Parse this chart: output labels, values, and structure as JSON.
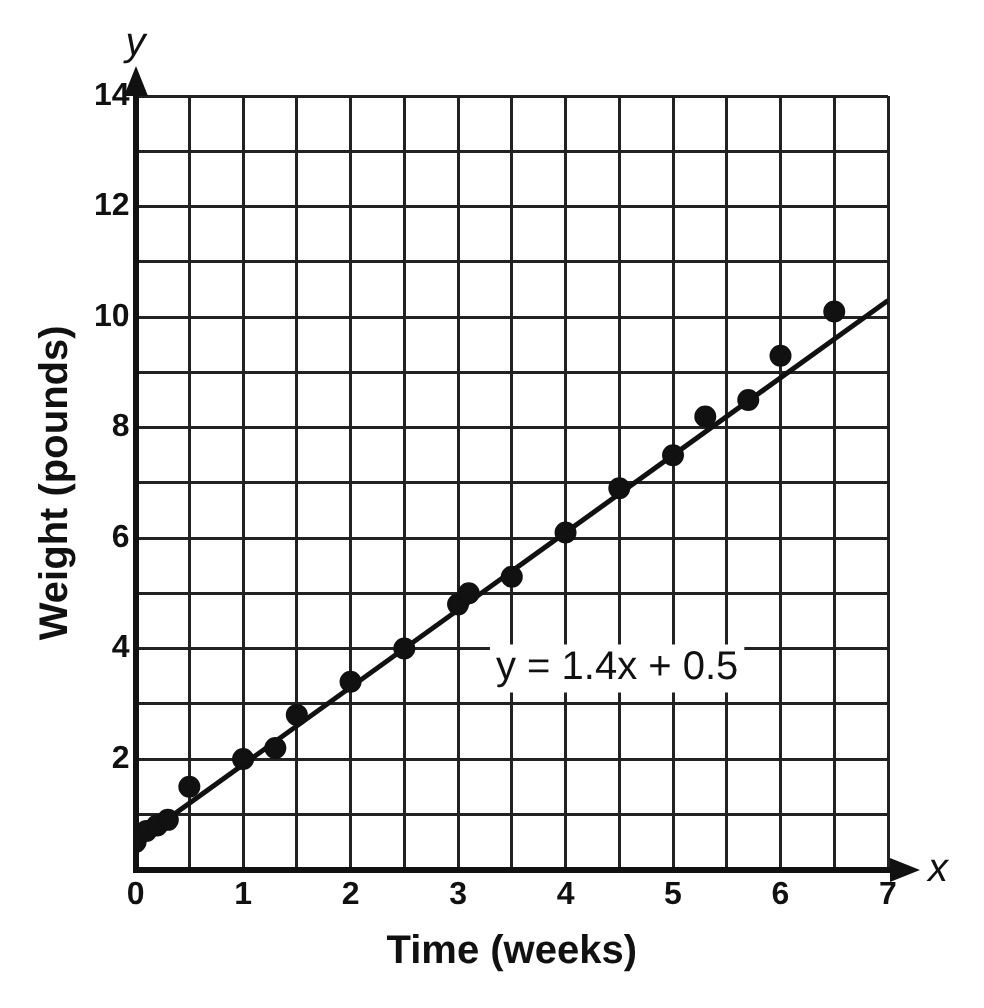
{
  "chart_data": {
    "type": "scatter",
    "xlabel": "Time (weeks)",
    "ylabel": "Weight (pounds)",
    "xlim": [
      0,
      7
    ],
    "ylim": [
      0,
      14
    ],
    "xticks": [
      0,
      {
        "value": 0.5,
        "label": null
      },
      1,
      {
        "value": 1.5,
        "label": null
      },
      2,
      {
        "value": 2.5,
        "label": null
      },
      3,
      {
        "value": 3.5,
        "label": null
      },
      4,
      {
        "value": 4.5,
        "label": null
      },
      5,
      {
        "value": 5.5,
        "label": null
      },
      6,
      {
        "value": 6.5,
        "label": null
      },
      7
    ],
    "yticks": [
      {
        "value": 0,
        "label": null
      },
      {
        "value": 1,
        "label": null
      },
      2,
      {
        "value": 3,
        "label": null
      },
      4,
      {
        "value": 5,
        "label": null
      },
      6,
      {
        "value": 7,
        "label": null
      },
      8,
      {
        "value": 9,
        "label": null
      },
      10,
      {
        "value": 11,
        "label": null
      },
      12,
      {
        "value": 13,
        "label": null
      },
      14
    ],
    "grid": true,
    "marker": "circle",
    "series": [
      {
        "type": "scatter",
        "color": "#111111",
        "x": [
          0,
          0.1,
          0.2,
          0.3,
          0.5,
          1,
          1.3,
          1.5,
          2,
          2.5,
          3,
          3.1,
          3.5,
          4,
          4.5,
          5,
          5.3,
          5.7,
          6,
          6.5
        ],
        "values": [
          0.5,
          0.7,
          0.8,
          0.9,
          1.5,
          2,
          2.2,
          2.8,
          3.4,
          4,
          4.8,
          5,
          5.3,
          6.1,
          6.9,
          7.5,
          8.2,
          8.5,
          9.3,
          10.1
        ]
      },
      {
        "type": "line",
        "color": "#111111",
        "marker": "none",
        "x": [
          0,
          7
        ],
        "values": [
          0.5,
          10.3
        ]
      }
    ],
    "annotations": [
      "y = 1.4x + 0.5",
      "y",
      "x"
    ]
  }
}
